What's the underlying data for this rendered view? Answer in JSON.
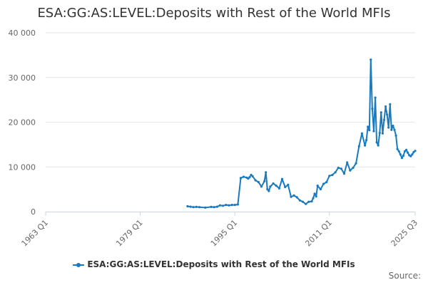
{
  "chart_data": {
    "type": "line",
    "title": "ESA:GG:AS:LEVEL:Deposits with Rest of the World MFIs",
    "xlabel": "",
    "ylabel": "",
    "color": "#1a7abf",
    "legend_position": "bottom",
    "grid": true,
    "credits": "Source:",
    "xlim": [
      1963.0,
      2025.5
    ],
    "ylim": [
      0,
      40000
    ],
    "x_ticks": [
      {
        "value": 1963.0,
        "label": "1963 Q1"
      },
      {
        "value": 1979.0,
        "label": "1979 Q1"
      },
      {
        "value": 1995.0,
        "label": "1995 Q1"
      },
      {
        "value": 2011.0,
        "label": "2011 Q1"
      },
      {
        "value": 2025.5,
        "label": "2025 Q3"
      }
    ],
    "y_ticks": [
      {
        "value": 0,
        "label": "0"
      },
      {
        "value": 10000,
        "label": "10 000"
      },
      {
        "value": 20000,
        "label": "20 000"
      },
      {
        "value": 30000,
        "label": "30 000"
      },
      {
        "value": 40000,
        "label": "40 000"
      }
    ],
    "series": [
      {
        "name": "ESA:GG:AS:LEVEL:Deposits with Rest of the World MFIs",
        "x": [
          1987.0,
          1987.5,
          1988.0,
          1988.5,
          1989.0,
          1990.0,
          1991.0,
          1991.5,
          1992.0,
          1992.5,
          1993.0,
          1993.5,
          1994.0,
          1994.5,
          1995.0,
          1995.5,
          1996.0,
          1996.5,
          1997.0,
          1997.25,
          1997.5,
          1997.75,
          1998.0,
          1998.5,
          1999.0,
          1999.5,
          2000.0,
          2000.25,
          2000.5,
          2000.75,
          2001.0,
          2001.5,
          2002.0,
          2002.5,
          2003.0,
          2003.5,
          2004.0,
          2004.5,
          2005.0,
          2005.5,
          2006.0,
          2006.5,
          2007.0,
          2007.5,
          2008.0,
          2008.25,
          2008.5,
          2008.75,
          2009.0,
          2009.5,
          2010.0,
          2010.5,
          2011.0,
          2011.5,
          2012.0,
          2012.5,
          2013.0,
          2013.5,
          2014.0,
          2014.5,
          2015.0,
          2015.5,
          2016.0,
          2016.5,
          2017.0,
          2017.25,
          2017.5,
          2017.75,
          2018.0,
          2018.25,
          2018.5,
          2018.75,
          2019.0,
          2019.25,
          2019.5,
          2019.75,
          2020.0,
          2020.25,
          2020.5,
          2020.75,
          2021.0,
          2021.25,
          2021.5,
          2021.75,
          2022.0,
          2022.25,
          2022.5,
          2022.75,
          2023.0,
          2023.25,
          2023.5,
          2023.75,
          2024.0,
          2024.25,
          2024.5,
          2024.75,
          2025.0,
          2025.25,
          2025.5
        ],
        "y": [
          1200,
          1100,
          1000,
          1050,
          1000,
          900,
          1050,
          1000,
          1100,
          1400,
          1300,
          1500,
          1400,
          1500,
          1500,
          1600,
          7500,
          7800,
          7600,
          7400,
          7700,
          8200,
          7900,
          7000,
          6600,
          5600,
          6800,
          8800,
          5000,
          4600,
          5600,
          6300,
          5800,
          5200,
          7300,
          5500,
          6000,
          3300,
          3600,
          3200,
          2500,
          2200,
          1700,
          2200,
          2300,
          3000,
          4000,
          3400,
          5800,
          5000,
          6200,
          6600,
          8000,
          8200,
          8800,
          9800,
          9600,
          8500,
          11000,
          9200,
          9800,
          10800,
          14600,
          17500,
          14800,
          16000,
          19000,
          18200,
          34000,
          23000,
          18000,
          25500,
          15500,
          14800,
          17600,
          22200,
          17500,
          20500,
          23500,
          21700,
          18800,
          24000,
          18300,
          19200,
          18300,
          17000,
          14000,
          13500,
          12800,
          12000,
          12500,
          13500,
          13800,
          13200,
          12600,
          12400,
          12800,
          13300,
          13600
        ]
      }
    ]
  }
}
